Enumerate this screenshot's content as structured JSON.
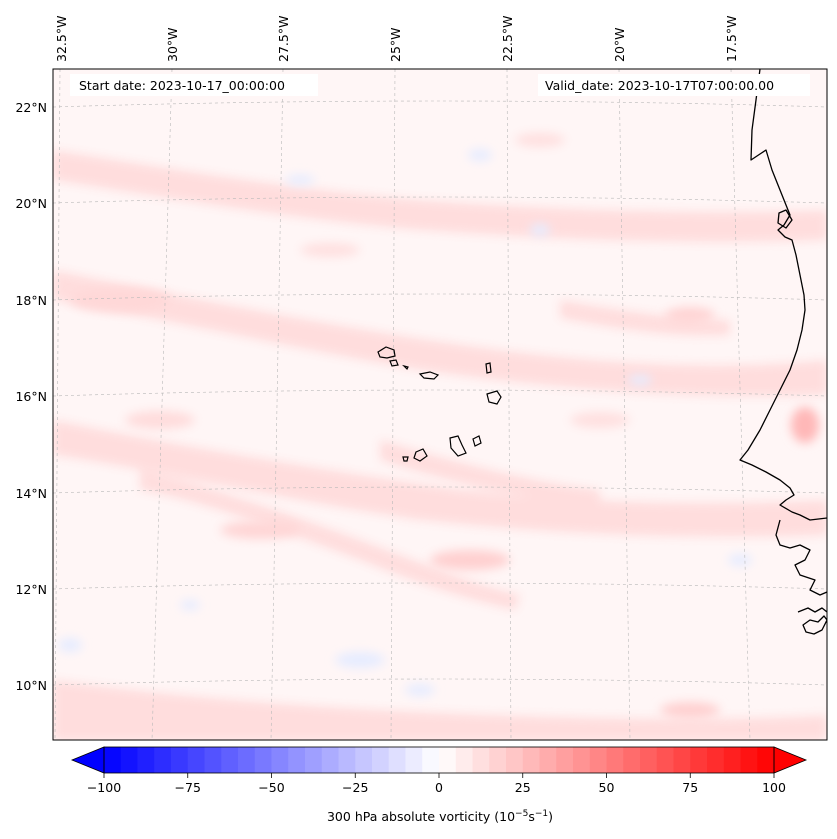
{
  "annotations": {
    "start_date": "Start date: 2023-10-17_00:00:00",
    "valid_date": "Valid_date: 2023-10-17T07:00:00.00"
  },
  "longitude_labels": [
    "32.5°W",
    "30°W",
    "27.5°W",
    "25°W",
    "22.5°W",
    "20°W",
    "17.5°W"
  ],
  "latitude_labels": [
    "22°N",
    "20°N",
    "18°N",
    "16°N",
    "14°N",
    "12°N",
    "10°N"
  ],
  "colorbar": {
    "label_main": "300 hPa absolute vorticity (10",
    "label_exp1": "−5",
    "label_mid": "s",
    "label_exp2": "−1",
    "label_end": ")",
    "tick_labels": [
      "−100",
      "−75",
      "−50",
      "−25",
      "0",
      "25",
      "50",
      "75",
      "100"
    ],
    "ticks": [
      -100,
      -75,
      -50,
      -25,
      0,
      25,
      50,
      75,
      100
    ],
    "min": -100,
    "max": 100,
    "levels": 40,
    "negative_color": "#0000ff",
    "zero_color": "#ffffff",
    "positive_color": "#ff0000"
  },
  "colors": {
    "coastline": "#000000",
    "gridline": "#b8b8b8",
    "background_field": "#fff5f5"
  }
}
